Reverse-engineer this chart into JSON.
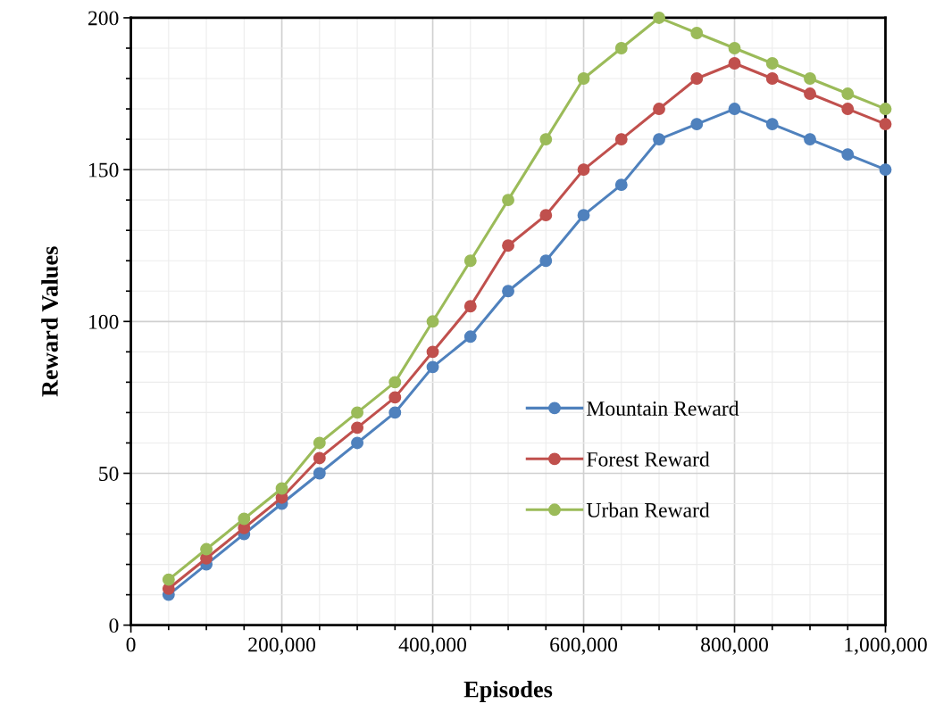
{
  "chart_data": {
    "type": "line",
    "xlabel": "Episodes",
    "ylabel": "Reward Values",
    "x": [
      50000,
      100000,
      150000,
      200000,
      250000,
      300000,
      350000,
      400000,
      450000,
      500000,
      550000,
      600000,
      650000,
      700000,
      750000,
      800000,
      850000,
      900000,
      950000,
      1000000
    ],
    "series": [
      {
        "name": "Mountain Reward",
        "color": "#4f81bd",
        "values": [
          10,
          20,
          30,
          40,
          50,
          60,
          70,
          85,
          95,
          110,
          120,
          135,
          145,
          160,
          165,
          170,
          165,
          160,
          155,
          150
        ]
      },
      {
        "name": "Forest Reward",
        "color": "#c0504d",
        "values": [
          12,
          22,
          32,
          42,
          55,
          65,
          75,
          90,
          105,
          125,
          135,
          150,
          160,
          170,
          180,
          185,
          180,
          175,
          170,
          165
        ]
      },
      {
        "name": "Urban Reward",
        "color": "#9bbb59",
        "values": [
          15,
          25,
          35,
          45,
          60,
          70,
          80,
          100,
          120,
          140,
          160,
          180,
          190,
          200,
          195,
          190,
          185,
          180,
          175,
          170
        ]
      }
    ],
    "xlim": [
      0,
      1000000
    ],
    "xticks": [
      0,
      {
        "value": 200000,
        "label": "200,000"
      },
      {
        "value": 400000,
        "label": "400,000"
      },
      {
        "value": 600000,
        "label": "600,000"
      },
      {
        "value": 800000,
        "label": "800,000"
      },
      {
        "value": 1000000,
        "label": "1,000,000"
      }
    ],
    "ylim": [
      0,
      200
    ],
    "yticks": [
      0,
      50,
      100,
      150,
      200
    ],
    "grid": true,
    "legend": "bottom right",
    "marker": "circle",
    "line_style": "solid"
  }
}
